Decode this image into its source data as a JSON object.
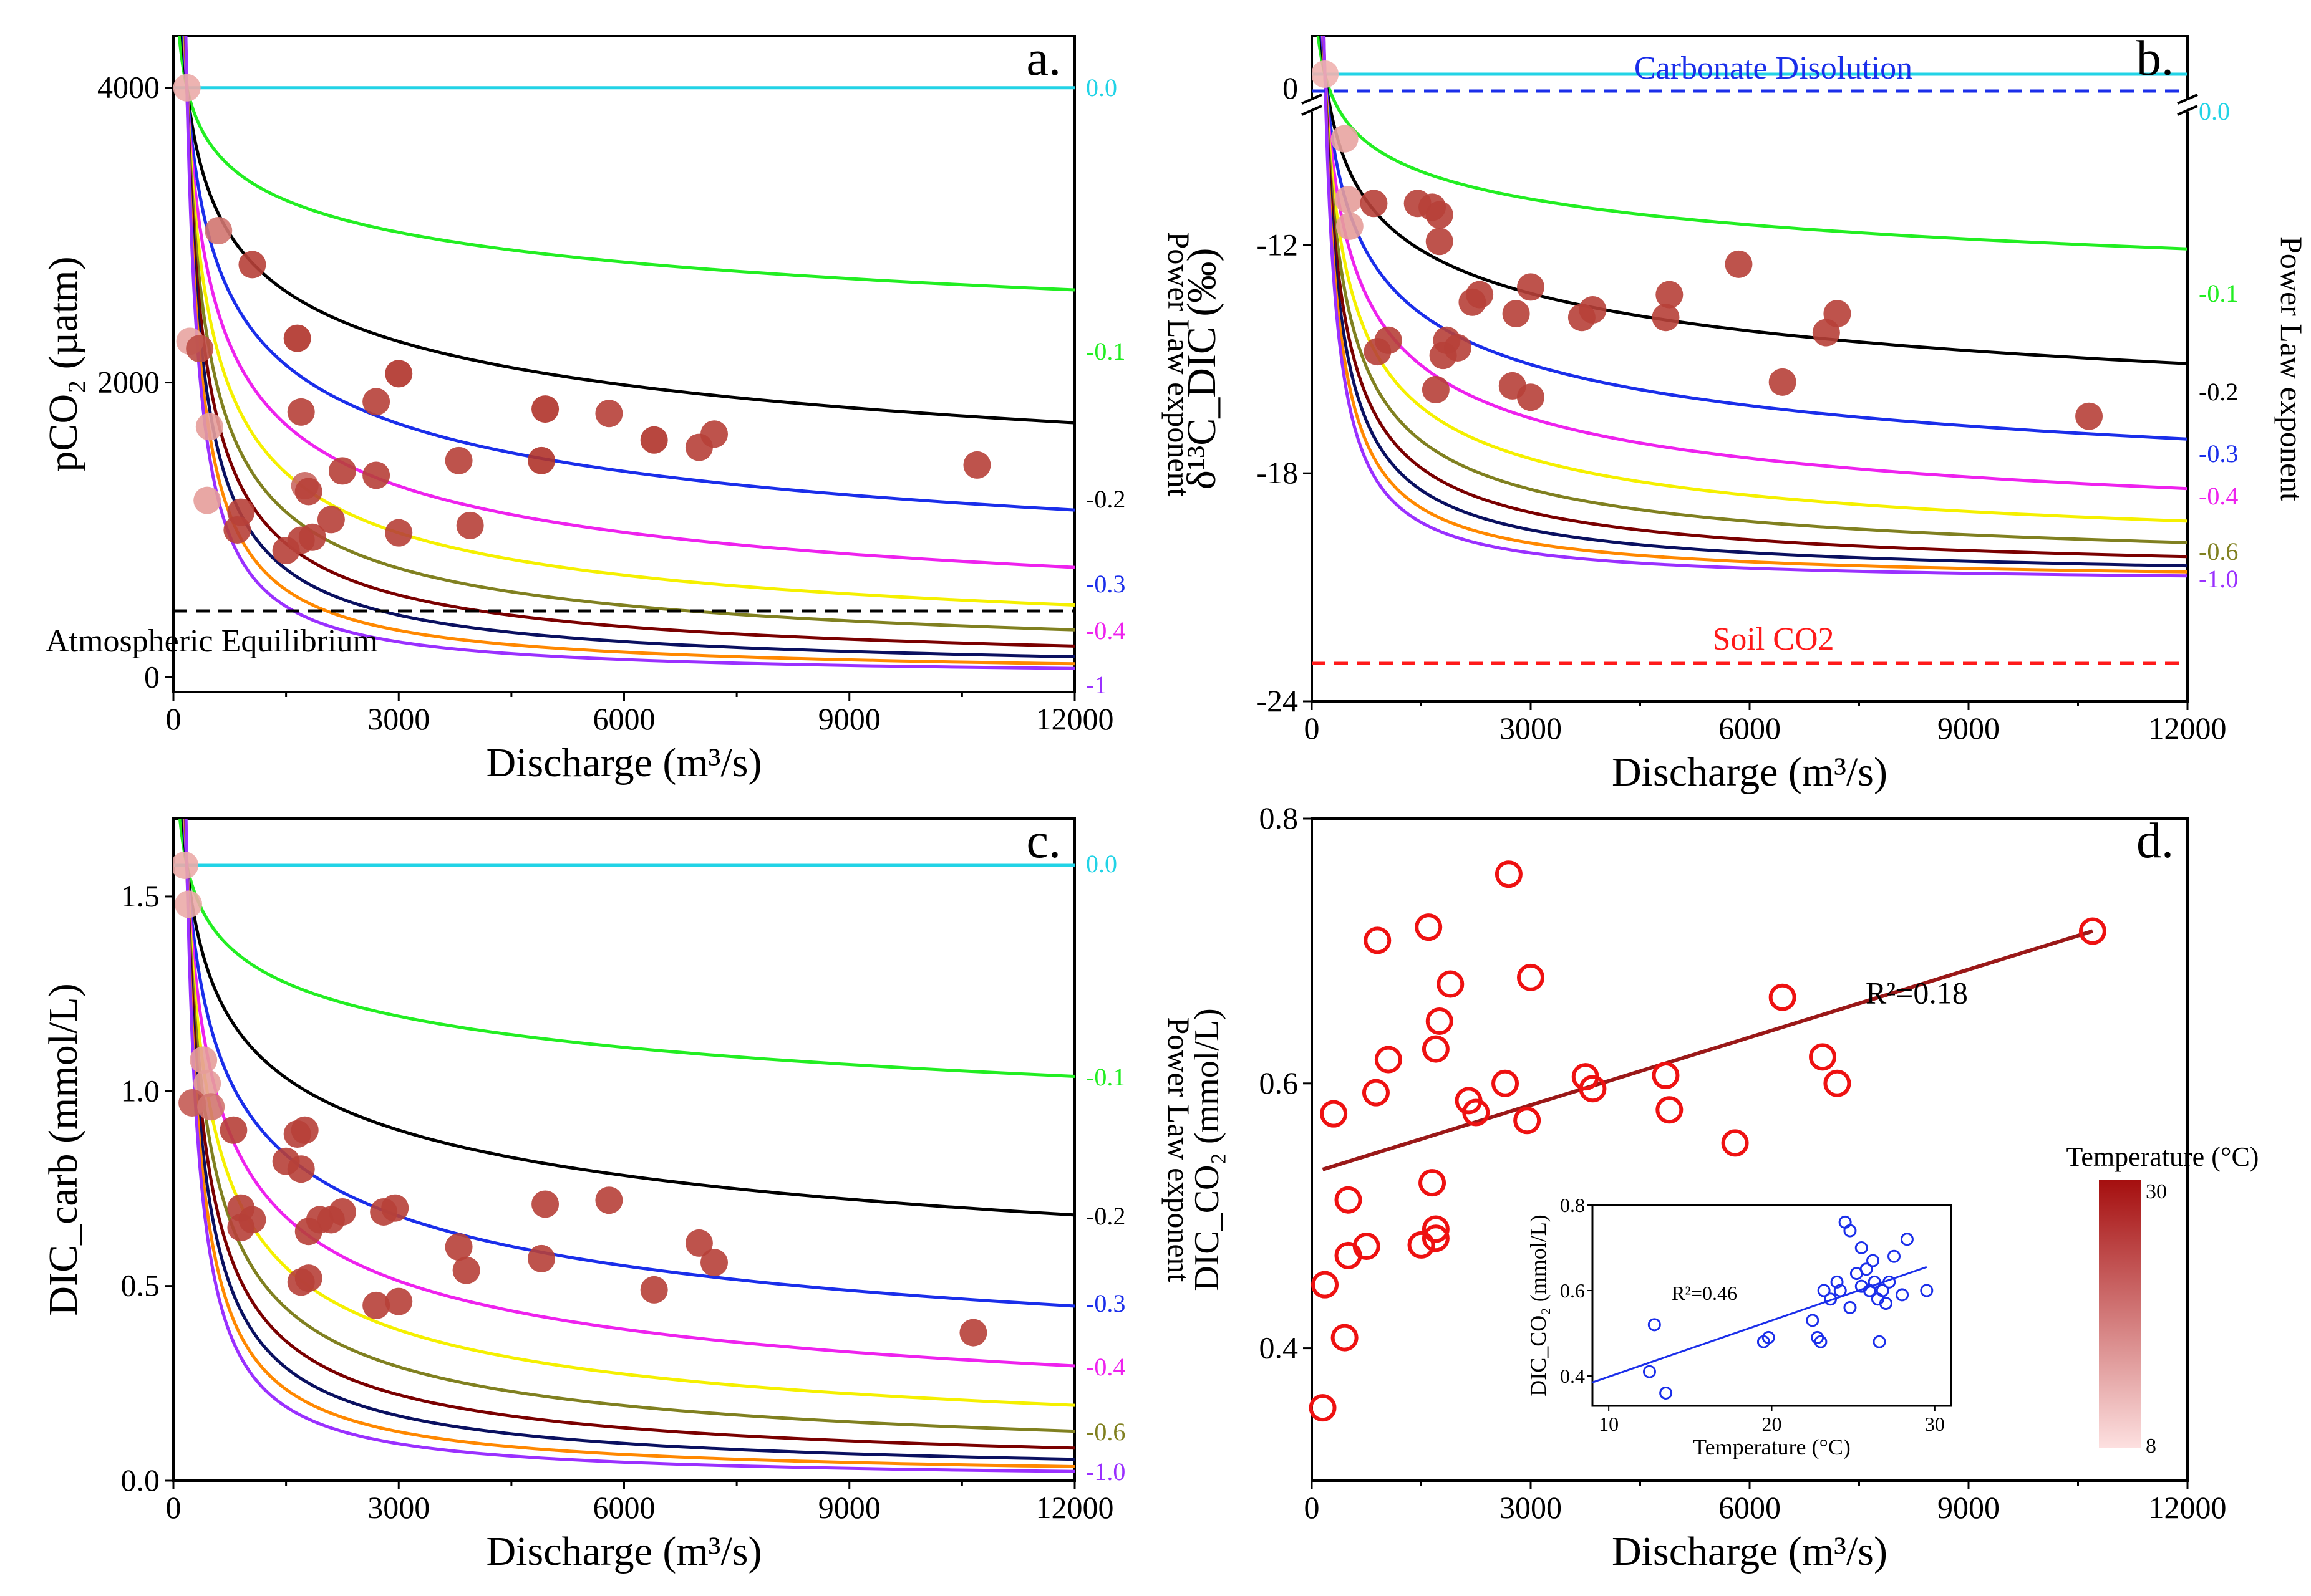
{
  "figure": {
    "type": "multi-panel scientific figure",
    "panels": [
      "a.",
      "b.",
      "c.",
      "d."
    ]
  },
  "colors": {
    "0.0": "#22d3e6",
    "-0.1": "#22ee22",
    "-0.2": "#000000",
    "-0.3": "#1a2eea",
    "-0.4": "#ee22ee",
    "-0.5": "#f5f000",
    "-0.6": "#808020",
    "-0.7": "#7a0000",
    "-0.8": "#0a1060",
    "-0.9": "#ff8800",
    "-1.0": "#9a30ff",
    "dots_dark": "#b0332a",
    "dots_light": "#f2b8b6",
    "d_circles": "#ee1111",
    "d_line": "#9a1818",
    "inset": "#1a2eea",
    "colorbar_top": "#a50f0f",
    "colorbar_bottom": "#fde0e0",
    "atm_line": "#000000",
    "soil_line": "#ff1a1a",
    "carbonate_line": "#1a2eea"
  },
  "chart_data": [
    {
      "panel": "a.",
      "type": "line+scatter",
      "xlabel": "Discharge (m³/s)",
      "ylabel": "pCO₂ (µatm)",
      "y2label": "Power Law exponent",
      "xlim": [
        0,
        12000
      ],
      "ylim": [
        -100,
        4350
      ],
      "xticks": [
        "0",
        "3000",
        "6000",
        "9000",
        "12000"
      ],
      "yticks": [
        "0",
        "2000",
        "4000"
      ],
      "ref_value": 4000,
      "equilibrium_value": 0,
      "reference_lines": [
        {
          "label": "Atmospheric Equilibrium",
          "y": 450,
          "style": "dashed",
          "color": "#000000"
        }
      ],
      "curve_exponents": [
        0.0,
        -0.1,
        -0.2,
        -0.3,
        -0.4,
        -0.5,
        -0.6,
        -0.7,
        -0.8,
        -0.9,
        -1.0
      ],
      "curve_labels": [
        "0.0",
        "-0.1",
        "-0.2",
        "-0.3",
        "-0.4",
        "",
        "",
        "",
        "",
        "",
        "-1"
      ],
      "points": [
        [
          180,
          4000,
          0.1
        ],
        [
          220,
          2280,
          0.15
        ],
        [
          350,
          2230,
          0.8
        ],
        [
          480,
          1700,
          0.2
        ],
        [
          450,
          1200,
          0.2
        ],
        [
          600,
          3030,
          0.5
        ],
        [
          1050,
          2800,
          0.9
        ],
        [
          900,
          1120,
          0.9
        ],
        [
          850,
          1000,
          0.9
        ],
        [
          1650,
          2300,
          1.0
        ],
        [
          1700,
          1800,
          0.9
        ],
        [
          1750,
          1300,
          0.6
        ],
        [
          1800,
          1260,
          0.9
        ],
        [
          1500,
          860,
          0.9
        ],
        [
          1700,
          930,
          0.9
        ],
        [
          1850,
          950,
          0.9
        ],
        [
          2100,
          1070,
          0.9
        ],
        [
          2250,
          1400,
          0.9
        ],
        [
          2700,
          1870,
          0.9
        ],
        [
          3000,
          2060,
          1.0
        ],
        [
          2700,
          1370,
          0.9
        ],
        [
          3000,
          980,
          0.9
        ],
        [
          3800,
          1470,
          0.9
        ],
        [
          3950,
          1030,
          0.9
        ],
        [
          4900,
          1470,
          1.0
        ],
        [
          4950,
          1820,
          1.0
        ],
        [
          5800,
          1790,
          0.9
        ],
        [
          6400,
          1610,
          1.0
        ],
        [
          7000,
          1560,
          0.9
        ],
        [
          7200,
          1650,
          0.9
        ],
        [
          10700,
          1440,
          0.9
        ]
      ]
    },
    {
      "panel": "b.",
      "type": "line+scatter",
      "xlabel": "Discharge (m³/s)",
      "ylabel": "δ¹³C_DIC (‰)",
      "y2label": "Power Law exponent",
      "xlim": [
        0,
        12000
      ],
      "ylim": [
        -24,
        -6.5
      ],
      "broken_axis_value": 0,
      "xticks": [
        "0",
        "3000",
        "6000",
        "9000",
        "12000"
      ],
      "yticks": [
        "-24",
        "-18",
        "-12"
      ],
      "break_tick": "0",
      "ref_value": -7.5,
      "equilibrium_value": -20.9,
      "reference_lines": [
        {
          "label": "Carbonate Disolution",
          "y": 0,
          "style": "dashed",
          "color": "#1a2eea"
        },
        {
          "label": "Soil CO2",
          "y": -23,
          "style": "dashed",
          "color": "#ff1a1a"
        }
      ],
      "curve_exponents": [
        0.0,
        -0.1,
        -0.2,
        -0.3,
        -0.4,
        -0.5,
        -0.6,
        -0.7,
        -0.8,
        -0.9,
        -1.0
      ],
      "curve_labels": [
        "0.0",
        "-0.1",
        "-0.2",
        "-0.3",
        "-0.4",
        "",
        "-0.6",
        "",
        "",
        "",
        "-1.0"
      ],
      "points": [
        [
          180,
          -7.5,
          0.05
        ],
        [
          450,
          -9.2,
          0.15
        ],
        [
          500,
          -10.8,
          0.2
        ],
        [
          520,
          -11.5,
          0.2
        ],
        [
          850,
          -10.9,
          0.9
        ],
        [
          900,
          -14.8,
          0.9
        ],
        [
          1050,
          -14.5,
          0.9
        ],
        [
          1450,
          -10.9,
          0.9
        ],
        [
          1650,
          -11.0,
          0.9
        ],
        [
          1750,
          -11.2,
          0.9
        ],
        [
          1750,
          -11.9,
          0.9
        ],
        [
          1700,
          -15.8,
          0.9
        ],
        [
          1800,
          -14.9,
          0.9
        ],
        [
          1850,
          -14.5,
          0.9
        ],
        [
          2000,
          -14.7,
          0.9
        ],
        [
          2200,
          -13.5,
          0.9
        ],
        [
          2300,
          -13.3,
          0.9
        ],
        [
          2750,
          -15.7,
          0.9
        ],
        [
          2800,
          -13.8,
          0.9
        ],
        [
          3000,
          -13.1,
          0.9
        ],
        [
          3000,
          -16.0,
          0.9
        ],
        [
          3700,
          -13.9,
          0.9
        ],
        [
          3850,
          -13.7,
          0.9
        ],
        [
          4850,
          -13.9,
          0.9
        ],
        [
          4900,
          -13.3,
          0.9
        ],
        [
          5850,
          -12.5,
          0.9
        ],
        [
          6450,
          -15.6,
          0.9
        ],
        [
          7050,
          -14.3,
          0.9
        ],
        [
          7200,
          -13.8,
          0.9
        ],
        [
          10650,
          -16.5,
          0.9
        ]
      ]
    },
    {
      "panel": "c.",
      "type": "line+scatter",
      "xlabel": "Discharge (m³/s)",
      "ylabel": "DIC_carb (mmol/L)",
      "y2label": "Power Law exponent",
      "xlim": [
        0,
        12000
      ],
      "ylim": [
        0,
        1.7
      ],
      "xticks": [
        "0",
        "3000",
        "6000",
        "9000",
        "12000"
      ],
      "yticks": [
        "0.0",
        "0.5",
        "1.0",
        "1.5"
      ],
      "ref_value": 1.58,
      "equilibrium_value": 0,
      "curve_exponents": [
        0.0,
        -0.1,
        -0.2,
        -0.3,
        -0.4,
        -0.5,
        -0.6,
        -0.7,
        -0.8,
        -0.9,
        -1.0
      ],
      "curve_labels": [
        "0.0",
        "-0.1",
        "-0.2",
        "-0.3",
        "-0.4",
        "",
        "-0.6",
        "",
        "",
        "",
        "-1.0"
      ],
      "points": [
        [
          150,
          1.58,
          0.1
        ],
        [
          200,
          1.48,
          0.1
        ],
        [
          400,
          1.08,
          0.2
        ],
        [
          450,
          1.02,
          0.2
        ],
        [
          250,
          0.97,
          0.7
        ],
        [
          500,
          0.96,
          0.5
        ],
        [
          800,
          0.9,
          0.9
        ],
        [
          900,
          0.7,
          0.9
        ],
        [
          900,
          0.65,
          0.9
        ],
        [
          1050,
          0.67,
          0.9
        ],
        [
          1500,
          0.82,
          0.9
        ],
        [
          1650,
          0.89,
          0.9
        ],
        [
          1700,
          0.8,
          0.9
        ],
        [
          1750,
          0.9,
          0.9
        ],
        [
          1700,
          0.51,
          0.9
        ],
        [
          1800,
          0.52,
          0.9
        ],
        [
          1800,
          0.64,
          0.9
        ],
        [
          1950,
          0.67,
          0.9
        ],
        [
          2100,
          0.67,
          0.9
        ],
        [
          2250,
          0.69,
          0.9
        ],
        [
          2700,
          0.45,
          0.9
        ],
        [
          2800,
          0.69,
          0.9
        ],
        [
          2950,
          0.7,
          0.9
        ],
        [
          3000,
          0.46,
          0.9
        ],
        [
          3800,
          0.6,
          0.9
        ],
        [
          3900,
          0.54,
          0.9
        ],
        [
          4900,
          0.57,
          0.9
        ],
        [
          4950,
          0.71,
          0.9
        ],
        [
          5800,
          0.72,
          0.9
        ],
        [
          6400,
          0.49,
          0.9
        ],
        [
          7000,
          0.61,
          0.9
        ],
        [
          7200,
          0.56,
          0.9
        ],
        [
          10650,
          0.38,
          0.9
        ]
      ]
    },
    {
      "panel": "d.",
      "type": "scatter+fit",
      "xlabel": "Discharge (m³/s)",
      "ylabel": "DIC_CO₂ (mmol/L)",
      "xlim": [
        0,
        12000
      ],
      "ylim": [
        0.3,
        0.8
      ],
      "xticks": [
        "0",
        "3000",
        "6000",
        "9000",
        "12000"
      ],
      "yticks": [
        "0.4",
        "0.6",
        "0.8"
      ],
      "fit": {
        "x0": 150,
        "y0": 0.535,
        "x1": 10700,
        "y1": 0.715,
        "r2_label": "R²=0.18"
      },
      "points": [
        [
          150,
          0.355
        ],
        [
          180,
          0.448
        ],
        [
          300,
          0.577
        ],
        [
          450,
          0.408
        ],
        [
          500,
          0.47
        ],
        [
          500,
          0.512
        ],
        [
          750,
          0.477
        ],
        [
          880,
          0.593
        ],
        [
          900,
          0.708
        ],
        [
          1050,
          0.618
        ],
        [
          1500,
          0.478
        ],
        [
          1600,
          0.718
        ],
        [
          1650,
          0.525
        ],
        [
          1700,
          0.483
        ],
        [
          1700,
          0.49
        ],
        [
          1700,
          0.626
        ],
        [
          1750,
          0.647
        ],
        [
          1900,
          0.675
        ],
        [
          2150,
          0.587
        ],
        [
          2250,
          0.578
        ],
        [
          2650,
          0.6
        ],
        [
          2700,
          0.758
        ],
        [
          2950,
          0.572
        ],
        [
          3000,
          0.68
        ],
        [
          3750,
          0.605
        ],
        [
          3850,
          0.596
        ],
        [
          4850,
          0.606
        ],
        [
          4900,
          0.58
        ],
        [
          5800,
          0.555
        ],
        [
          6450,
          0.665
        ],
        [
          7000,
          0.62
        ],
        [
          7200,
          0.6
        ],
        [
          10700,
          0.715
        ]
      ],
      "colorbar": {
        "title": "Temperature (°C)",
        "max_label": "30",
        "min_label": "8"
      },
      "inset": {
        "xlabel": "Temperature (°C)",
        "ylabel": "DIC_CO₂ (mmol/L)",
        "xlim": [
          9,
          31
        ],
        "ylim": [
          0.33,
          0.8
        ],
        "xticks": [
          "10",
          "20",
          "30"
        ],
        "yticks": [
          "0.4",
          "0.6",
          "0.8"
        ],
        "fit": {
          "x0": 9,
          "y0": 0.385,
          "x1": 29.5,
          "y1": 0.655,
          "r2_label": "R²=0.46"
        },
        "points": [
          [
            12.5,
            0.41
          ],
          [
            12.8,
            0.52
          ],
          [
            13.5,
            0.36
          ],
          [
            19.5,
            0.48
          ],
          [
            19.8,
            0.49
          ],
          [
            22.5,
            0.53
          ],
          [
            22.8,
            0.49
          ],
          [
            23,
            0.48
          ],
          [
            23.2,
            0.6
          ],
          [
            23.6,
            0.58
          ],
          [
            24,
            0.62
          ],
          [
            24.2,
            0.6
          ],
          [
            24.5,
            0.76
          ],
          [
            24.8,
            0.56
          ],
          [
            24.8,
            0.74
          ],
          [
            25.2,
            0.64
          ],
          [
            25.5,
            0.61
          ],
          [
            25.5,
            0.7
          ],
          [
            25.8,
            0.65
          ],
          [
            26,
            0.6
          ],
          [
            26.2,
            0.67
          ],
          [
            26.3,
            0.62
          ],
          [
            26.5,
            0.58
          ],
          [
            26.6,
            0.48
          ],
          [
            26.8,
            0.6
          ],
          [
            27,
            0.57
          ],
          [
            27.2,
            0.62
          ],
          [
            27.5,
            0.68
          ],
          [
            28,
            0.59
          ],
          [
            28.3,
            0.72
          ],
          [
            29.5,
            0.6
          ]
        ]
      }
    }
  ]
}
